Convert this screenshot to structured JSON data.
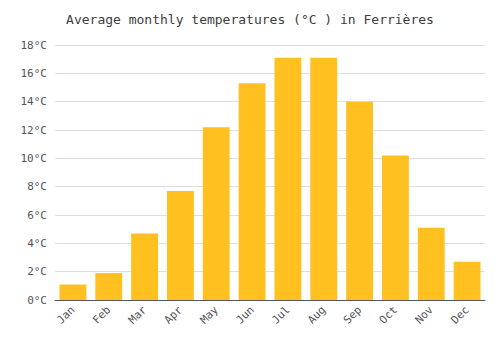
{
  "chart_data": {
    "type": "bar",
    "title": "Average monthly temperatures (°C ) in Ferrières",
    "categories": [
      "Jan",
      "Feb",
      "Mar",
      "Apr",
      "May",
      "Jun",
      "Jul",
      "Aug",
      "Sep",
      "Oct",
      "Nov",
      "Dec"
    ],
    "values": [
      1.1,
      1.9,
      4.7,
      7.7,
      12.2,
      15.3,
      17.1,
      17.1,
      14.0,
      10.2,
      5.1,
      2.7
    ],
    "color": "#FFC020",
    "ylim": [
      0,
      18
    ],
    "yticks": [
      {
        "value": 0,
        "label": "0°C"
      },
      {
        "value": 2,
        "label": "2°C"
      },
      {
        "value": 4,
        "label": "4°C"
      },
      {
        "value": 6,
        "label": "6°C"
      },
      {
        "value": 8,
        "label": "8°C"
      },
      {
        "value": 10,
        "label": "10°C"
      },
      {
        "value": 12,
        "label": "12°C"
      },
      {
        "value": 14,
        "label": "14°C"
      },
      {
        "value": 16,
        "label": "16°C"
      },
      {
        "value": 18,
        "label": "18°C"
      }
    ],
    "grid": true
  }
}
